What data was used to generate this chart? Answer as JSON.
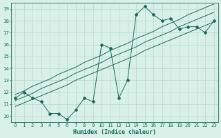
{
  "title": "",
  "xlabel": "Humidex (Indice chaleur)",
  "x_data": [
    0,
    1,
    2,
    3,
    4,
    5,
    6,
    7,
    8,
    9,
    10,
    11,
    12,
    13,
    14,
    15,
    16,
    17,
    18,
    19,
    20,
    21,
    22,
    23
  ],
  "y_main": [
    11.5,
    12.0,
    11.5,
    11.2,
    10.2,
    10.2,
    9.7,
    10.5,
    11.5,
    11.2,
    16.0,
    15.7,
    11.5,
    13.0,
    18.5,
    19.2,
    18.5,
    18.0,
    18.2,
    17.3,
    17.5,
    17.5,
    17.0,
    18.0
  ],
  "y_reg_upper": [
    11.8,
    12.1,
    12.5,
    12.8,
    13.1,
    13.5,
    13.8,
    14.1,
    14.5,
    14.8,
    15.1,
    15.5,
    15.8,
    16.1,
    16.5,
    16.8,
    17.1,
    17.5,
    17.8,
    18.1,
    18.5,
    18.8,
    19.1,
    19.4
  ],
  "y_reg_mid": [
    11.3,
    11.6,
    11.9,
    12.3,
    12.6,
    12.9,
    13.2,
    13.6,
    13.9,
    14.2,
    14.5,
    14.9,
    15.2,
    15.5,
    15.8,
    16.2,
    16.5,
    16.8,
    17.1,
    17.5,
    17.8,
    18.1,
    18.4,
    18.7
  ],
  "y_reg_lower": [
    10.8,
    11.1,
    11.4,
    11.7,
    12.0,
    12.3,
    12.6,
    13.0,
    13.3,
    13.6,
    13.9,
    14.2,
    14.5,
    14.8,
    15.1,
    15.5,
    15.8,
    16.1,
    16.4,
    16.7,
    17.0,
    17.3,
    17.6,
    17.9
  ],
  "line_color": "#1a6b5a",
  "bg_color": "#d8f0e8",
  "grid_color": "#b8d8cc",
  "ylim_min": 9.5,
  "ylim_max": 19.5,
  "xlim_min": -0.5,
  "xlim_max": 23.5,
  "yticks": [
    10,
    11,
    12,
    13,
    14,
    15,
    16,
    17,
    18,
    19
  ],
  "xticks": [
    0,
    1,
    2,
    3,
    4,
    5,
    6,
    7,
    8,
    9,
    10,
    11,
    12,
    13,
    14,
    15,
    16,
    17,
    18,
    19,
    20,
    21,
    22,
    23
  ],
  "tick_fontsize": 5.0,
  "xlabel_fontsize": 6.0
}
